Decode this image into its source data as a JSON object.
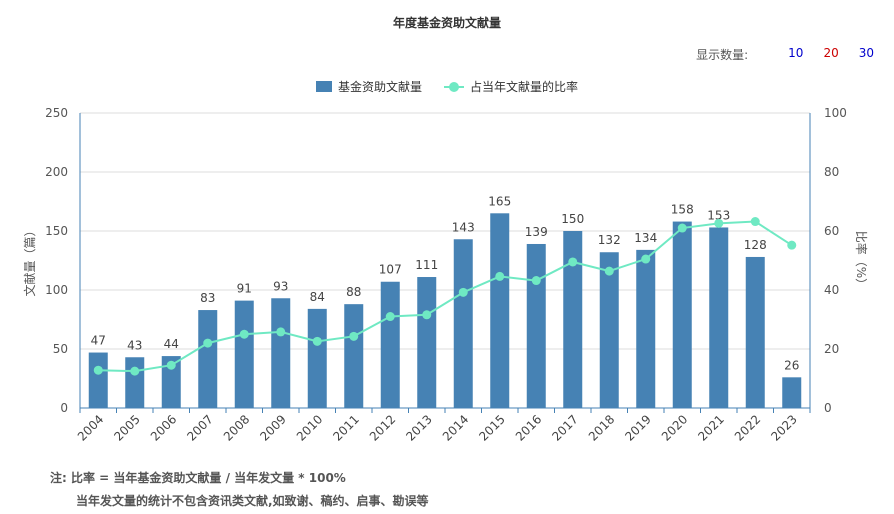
{
  "chart_data": {
    "type": "bar",
    "title": "年度基金资助文献量",
    "categories": [
      "2004",
      "2005",
      "2006",
      "2007",
      "2008",
      "2009",
      "2010",
      "2011",
      "2012",
      "2013",
      "2014",
      "2015",
      "2016",
      "2017",
      "2018",
      "2019",
      "2020",
      "2021",
      "2022",
      "2023"
    ],
    "series": [
      {
        "name": "基金资助文献量",
        "type": "bar",
        "axis": "left",
        "color": "#4682b4",
        "values": [
          47,
          43,
          44,
          83,
          91,
          93,
          84,
          88,
          107,
          111,
          143,
          165,
          139,
          150,
          132,
          134,
          158,
          153,
          128,
          26
        ]
      },
      {
        "name": "占当年文献量的比率",
        "type": "line",
        "axis": "right",
        "color": "#6fe9c3",
        "values": [
          12.8,
          12.5,
          14.5,
          22,
          25,
          25.8,
          22.6,
          24.3,
          31,
          31.6,
          39.2,
          44.6,
          43.2,
          49.5,
          46.4,
          50.5,
          61,
          62.6,
          63.2,
          55.2
        ]
      }
    ],
    "ylabel": "文献量（篇）",
    "y2label": "比率（%）",
    "ylim": [
      0,
      250
    ],
    "y2lim": [
      0,
      100
    ],
    "yticks": [
      0,
      50,
      100,
      150,
      200,
      250
    ],
    "y2ticks": [
      0,
      20,
      40,
      60,
      80,
      100
    ],
    "grid": true,
    "legend_position": "top-center",
    "data_labels": true
  },
  "controls": {
    "show_count_label": "显示数量:",
    "options": [
      "10",
      "20",
      "30"
    ],
    "option_colors": [
      "#0000cc",
      "#cc0000",
      "#0000cc"
    ]
  },
  "notes": {
    "line1": "注:  比率 = 当年基金资助文献量 / 当年发文量 * 100%",
    "line2": "当年发文量的统计不包含资讯类文献,如致谢、稿约、启事、勘误等"
  }
}
